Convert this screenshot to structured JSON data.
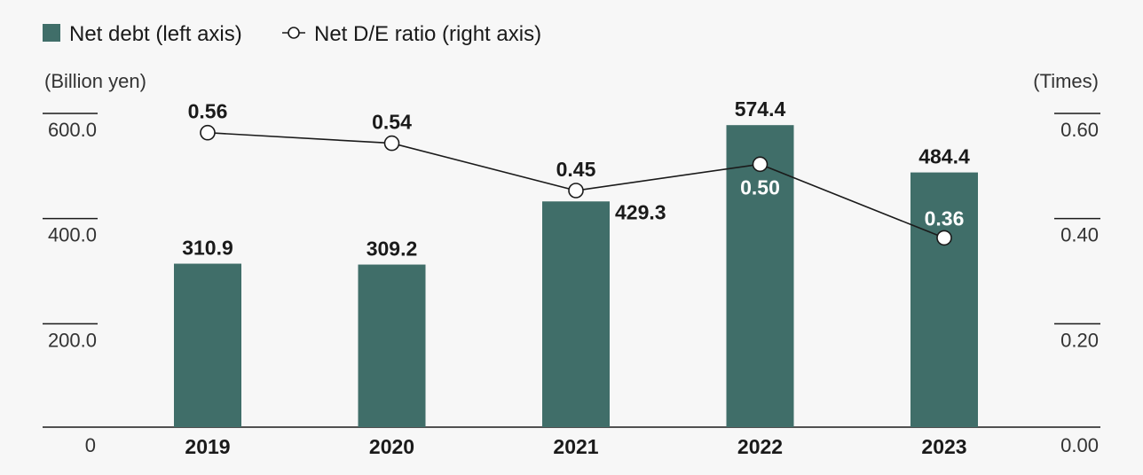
{
  "legend": {
    "bar_label": "Net debt (left axis)",
    "line_label": "Net D/E ratio (right axis)"
  },
  "axes": {
    "left_unit": "(Billion yen)",
    "right_unit": "(Times)",
    "left_ticks": [
      "0",
      "200.0",
      "400.0",
      "600.0"
    ],
    "right_ticks": [
      "0.00",
      "0.20",
      "0.40",
      "0.60"
    ]
  },
  "colors": {
    "bar": "#406e69",
    "line": "#1a1a1a",
    "marker_fill": "#ffffff",
    "label_dark": "#1a1a1a",
    "label_light": "#ffffff"
  },
  "chart_data": {
    "type": "bar",
    "categories": [
      "2019",
      "2020",
      "2021",
      "2022",
      "2023"
    ],
    "series": [
      {
        "name": "Net debt (left axis)",
        "type": "bar",
        "axis": "left",
        "values": [
          310.9,
          309.2,
          429.3,
          574.4,
          484.4
        ],
        "labels": [
          "310.9",
          "309.2",
          "429.3",
          "574.4",
          "484.4"
        ]
      },
      {
        "name": "Net D/E ratio (right axis)",
        "type": "line",
        "axis": "right",
        "values": [
          0.56,
          0.54,
          0.45,
          0.5,
          0.36
        ],
        "labels": [
          "0.56",
          "0.54",
          "0.45",
          "0.50",
          "0.36"
        ]
      }
    ],
    "ylim_left": [
      0,
      600
    ],
    "ylim_right": [
      0,
      0.6
    ],
    "ylabel": "(Billion yen)",
    "ylabel_right": "(Times)",
    "legend_position": "top-left",
    "grid": false
  }
}
